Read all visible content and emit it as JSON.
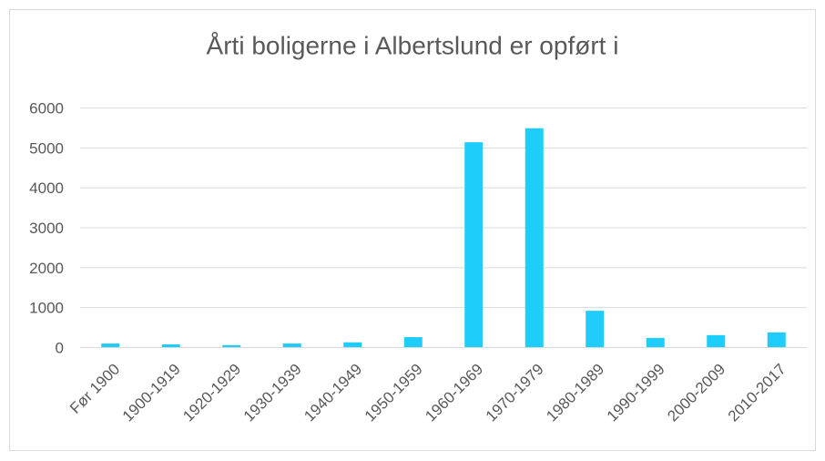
{
  "chart_data": {
    "type": "bar",
    "title": "Årti boligerne i Albertslund er opført i",
    "categories": [
      "Før 1900",
      "1900-1919",
      "1920-1929",
      "1930-1939",
      "1940-1949",
      "1950-1959",
      "1960-1969",
      "1970-1979",
      "1980-1989",
      "1990-1999",
      "2000-2009",
      "2010-2017"
    ],
    "values": [
      90,
      70,
      50,
      90,
      120,
      250,
      5130,
      5480,
      910,
      230,
      300,
      370
    ],
    "color": "#1fcdfa",
    "ylim": [
      0,
      6000
    ],
    "yticks": [
      0,
      1000,
      2000,
      3000,
      4000,
      5000,
      6000
    ],
    "grid": true
  }
}
